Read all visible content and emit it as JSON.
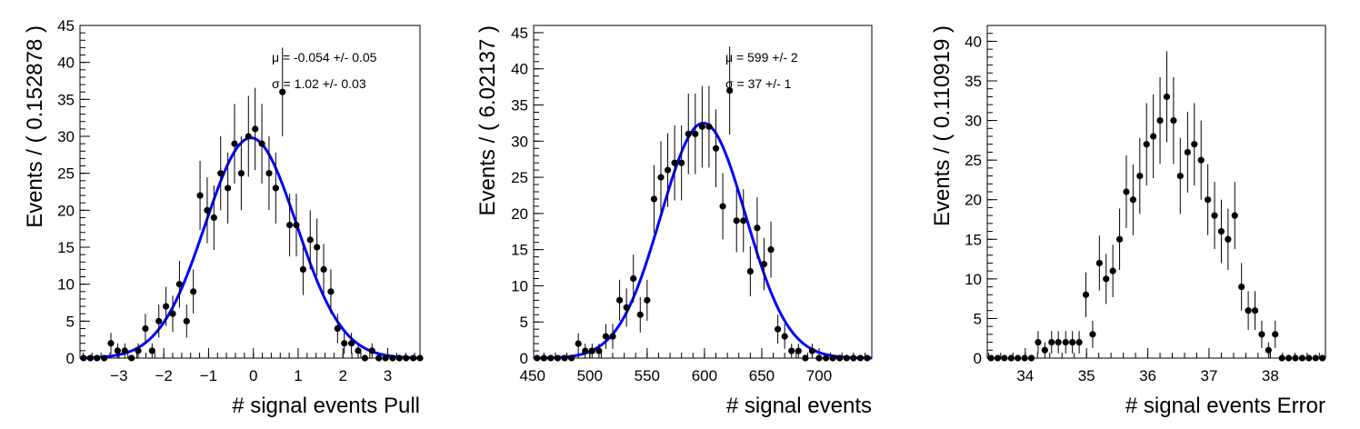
{
  "chart_data": [
    {
      "type": "scatter",
      "xlabel": "# signal events Pull",
      "ylabel": "Events / ( 0.152878 )",
      "xlim": [
        -3.87,
        3.72
      ],
      "ylim": [
        0,
        45
      ],
      "xticks": [
        -3,
        -2,
        -1,
        0,
        1,
        2,
        3
      ],
      "yticks": [
        0,
        5,
        10,
        15,
        20,
        25,
        30,
        35,
        40,
        45
      ],
      "annotations": [
        "μ = -0.054 +/- 0.05",
        "σ = 1.02 +/- 0.03"
      ],
      "fit": {
        "type": "gaussian",
        "mu": -0.054,
        "sigma": 1.02,
        "amplitude": 29.8,
        "color": "#0000ff"
      },
      "points": [
        [
          -3.79,
          0
        ],
        [
          -3.64,
          0
        ],
        [
          -3.49,
          0
        ],
        [
          -3.33,
          0
        ],
        [
          -3.18,
          2
        ],
        [
          -3.03,
          1
        ],
        [
          -2.87,
          1
        ],
        [
          -2.72,
          0
        ],
        [
          -2.57,
          1
        ],
        [
          -2.41,
          4
        ],
        [
          -2.26,
          1
        ],
        [
          -2.11,
          5
        ],
        [
          -1.95,
          7
        ],
        [
          -1.8,
          6
        ],
        [
          -1.65,
          10
        ],
        [
          -1.49,
          5
        ],
        [
          -1.34,
          9
        ],
        [
          -1.19,
          22
        ],
        [
          -1.03,
          20
        ],
        [
          -0.88,
          19
        ],
        [
          -0.73,
          25
        ],
        [
          -0.57,
          23
        ],
        [
          -0.42,
          29
        ],
        [
          -0.27,
          25
        ],
        [
          -0.11,
          30
        ],
        [
          0.04,
          31
        ],
        [
          0.19,
          29
        ],
        [
          0.35,
          25
        ],
        [
          0.5,
          23
        ],
        [
          0.65,
          36
        ],
        [
          0.81,
          18
        ],
        [
          0.96,
          18
        ],
        [
          1.11,
          12
        ],
        [
          1.27,
          16
        ],
        [
          1.42,
          15
        ],
        [
          1.57,
          12
        ],
        [
          1.73,
          9
        ],
        [
          1.88,
          4
        ],
        [
          2.03,
          2
        ],
        [
          2.19,
          2
        ],
        [
          2.34,
          1
        ],
        [
          2.49,
          0
        ],
        [
          2.65,
          1
        ],
        [
          2.8,
          0
        ],
        [
          2.95,
          0
        ],
        [
          3.11,
          0
        ],
        [
          3.26,
          0
        ],
        [
          3.41,
          0
        ],
        [
          3.57,
          0
        ],
        [
          3.72,
          0
        ]
      ]
    },
    {
      "type": "scatter",
      "xlabel": "# signal events",
      "ylabel": "Events / ( 6.02137 )",
      "xlim": [
        451,
        746
      ],
      "ylim": [
        0,
        46
      ],
      "xticks": [
        450,
        500,
        550,
        600,
        650,
        700
      ],
      "yticks": [
        0,
        5,
        10,
        15,
        20,
        25,
        30,
        35,
        40,
        45
      ],
      "annotations": [
        "μ =  599 +/- 2",
        "σ =  37 +/- 1"
      ],
      "fit": {
        "type": "gaussian",
        "mu": 599,
        "sigma": 37,
        "amplitude": 32.5,
        "color": "#0000ff"
      },
      "points": [
        [
          454,
          0
        ],
        [
          460,
          0
        ],
        [
          466,
          0
        ],
        [
          472,
          0
        ],
        [
          478,
          0
        ],
        [
          484,
          0
        ],
        [
          490,
          2
        ],
        [
          496,
          1
        ],
        [
          502,
          1
        ],
        [
          508,
          1
        ],
        [
          514,
          3
        ],
        [
          520,
          3
        ],
        [
          526,
          8
        ],
        [
          532,
          7
        ],
        [
          538,
          11
        ],
        [
          544,
          6
        ],
        [
          550,
          8
        ],
        [
          556,
          22
        ],
        [
          562,
          25
        ],
        [
          568,
          26
        ],
        [
          574,
          27
        ],
        [
          580,
          27
        ],
        [
          586,
          31
        ],
        [
          592,
          31
        ],
        [
          598,
          32
        ],
        [
          604,
          32
        ],
        [
          610,
          29
        ],
        [
          616,
          21
        ],
        [
          622,
          37
        ],
        [
          628,
          19
        ],
        [
          634,
          19
        ],
        [
          640,
          12
        ],
        [
          646,
          18
        ],
        [
          652,
          13
        ],
        [
          658,
          15
        ],
        [
          664,
          4
        ],
        [
          670,
          3
        ],
        [
          676,
          1
        ],
        [
          682,
          1
        ],
        [
          688,
          0
        ],
        [
          694,
          1
        ],
        [
          700,
          0
        ],
        [
          706,
          0
        ],
        [
          712,
          0
        ],
        [
          718,
          0
        ],
        [
          724,
          0
        ],
        [
          730,
          0
        ],
        [
          736,
          0
        ],
        [
          742,
          0
        ]
      ]
    },
    {
      "type": "scatter",
      "xlabel": "# signal events Error",
      "ylabel": "Events / ( 0.110919 )",
      "xlim": [
        33.38,
        38.9
      ],
      "ylim": [
        0,
        42
      ],
      "xticks": [
        34,
        35,
        36,
        37,
        38
      ],
      "yticks": [
        0,
        5,
        10,
        15,
        20,
        25,
        30,
        35,
        40
      ],
      "points": [
        [
          33.44,
          0
        ],
        [
          33.55,
          0
        ],
        [
          33.66,
          0
        ],
        [
          33.77,
          0
        ],
        [
          33.88,
          0
        ],
        [
          33.99,
          0
        ],
        [
          34.1,
          0
        ],
        [
          34.21,
          2
        ],
        [
          34.32,
          1
        ],
        [
          34.43,
          2
        ],
        [
          34.54,
          2
        ],
        [
          34.66,
          2
        ],
        [
          34.77,
          2
        ],
        [
          34.88,
          2
        ],
        [
          34.99,
          8
        ],
        [
          35.1,
          3
        ],
        [
          35.21,
          12
        ],
        [
          35.32,
          10
        ],
        [
          35.43,
          11
        ],
        [
          35.54,
          15
        ],
        [
          35.65,
          21
        ],
        [
          35.76,
          20
        ],
        [
          35.87,
          23
        ],
        [
          35.98,
          27
        ],
        [
          36.09,
          28
        ],
        [
          36.2,
          30
        ],
        [
          36.31,
          33
        ],
        [
          36.42,
          30
        ],
        [
          36.53,
          23
        ],
        [
          36.65,
          26
        ],
        [
          36.76,
          27
        ],
        [
          36.87,
          25
        ],
        [
          36.98,
          20
        ],
        [
          37.09,
          18
        ],
        [
          37.2,
          16
        ],
        [
          37.31,
          15
        ],
        [
          37.42,
          18
        ],
        [
          37.53,
          9
        ],
        [
          37.64,
          6
        ],
        [
          37.75,
          6
        ],
        [
          37.86,
          3
        ],
        [
          37.97,
          1
        ],
        [
          38.08,
          3
        ],
        [
          38.19,
          0
        ],
        [
          38.3,
          0
        ],
        [
          38.41,
          0
        ],
        [
          38.52,
          0
        ],
        [
          38.63,
          0
        ],
        [
          38.74,
          0
        ],
        [
          38.85,
          0
        ]
      ]
    }
  ]
}
